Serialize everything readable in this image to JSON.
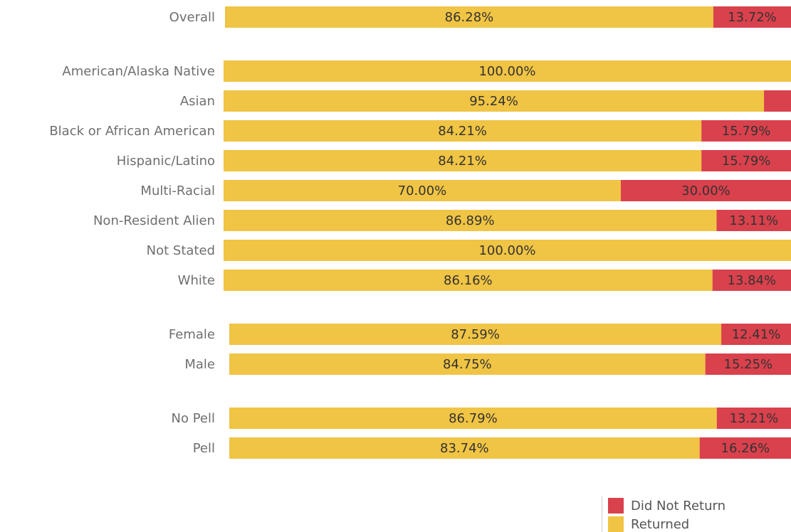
{
  "chart_data": {
    "type": "bar",
    "orientation": "horizontal",
    "stacked": true,
    "percent_stacked": true,
    "xlim": [
      0,
      100
    ],
    "groups": [
      {
        "rows": [
          {
            "label": "Overall",
            "returned": 86.28,
            "returned_label": "86.28%",
            "not_returned": 13.72,
            "not_returned_label": "13.72%"
          }
        ]
      },
      {
        "rows": [
          {
            "label": "American/Alaska Native",
            "returned": 100.0,
            "returned_label": "100.00%",
            "not_returned": 0.0,
            "not_returned_label": ""
          },
          {
            "label": "Asian",
            "returned": 95.24,
            "returned_label": "95.24%",
            "not_returned": 4.76,
            "not_returned_label": ""
          },
          {
            "label": "Black or African American",
            "returned": 84.21,
            "returned_label": "84.21%",
            "not_returned": 15.79,
            "not_returned_label": "15.79%"
          },
          {
            "label": "Hispanic/Latino",
            "returned": 84.21,
            "returned_label": "84.21%",
            "not_returned": 15.79,
            "not_returned_label": "15.79%"
          },
          {
            "label": "Multi-Racial",
            "returned": 70.0,
            "returned_label": "70.00%",
            "not_returned": 30.0,
            "not_returned_label": "30.00%"
          },
          {
            "label": "Non-Resident Alien",
            "returned": 86.89,
            "returned_label": "86.89%",
            "not_returned": 13.11,
            "not_returned_label": "13.11%"
          },
          {
            "label": "Not Stated",
            "returned": 100.0,
            "returned_label": "100.00%",
            "not_returned": 0.0,
            "not_returned_label": ""
          },
          {
            "label": "White",
            "returned": 86.16,
            "returned_label": "86.16%",
            "not_returned": 13.84,
            "not_returned_label": "13.84%"
          }
        ]
      },
      {
        "rows": [
          {
            "label": "Female",
            "returned": 87.59,
            "returned_label": "87.59%",
            "not_returned": 12.41,
            "not_returned_label": "12.41%"
          },
          {
            "label": "Male",
            "returned": 84.75,
            "returned_label": "84.75%",
            "not_returned": 15.25,
            "not_returned_label": "15.25%"
          }
        ]
      },
      {
        "rows": [
          {
            "label": "No Pell",
            "returned": 86.79,
            "returned_label": "86.79%",
            "not_returned": 13.21,
            "not_returned_label": "13.21%"
          },
          {
            "label": "Pell",
            "returned": 83.74,
            "returned_label": "83.74%",
            "not_returned": 16.26,
            "not_returned_label": "16.26%"
          }
        ]
      }
    ],
    "series": [
      {
        "key": "not_returned",
        "name": "Did Not Return",
        "color": "#d9414c"
      },
      {
        "key": "returned",
        "name": "Returned",
        "color": "#f0c444"
      }
    ],
    "legend_position": "bottom-right",
    "grid": false
  },
  "legend": {
    "items": [
      {
        "label": "Did Not Return",
        "color": "#d9414c"
      },
      {
        "label": "Returned",
        "color": "#f0c444"
      }
    ]
  }
}
